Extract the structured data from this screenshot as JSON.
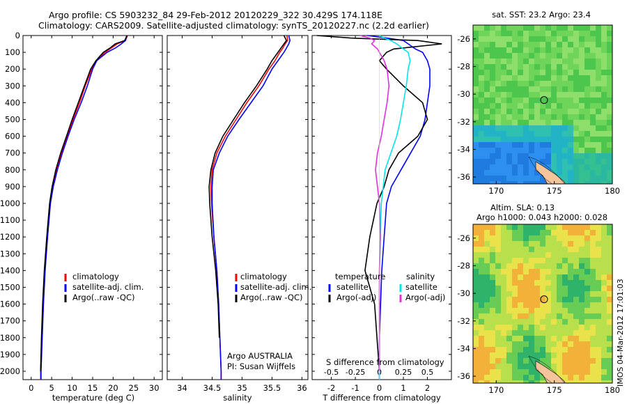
{
  "header": {
    "line1": "Argo profile: CS 5903232_84 29-Feb-2012 20120229_322 30.429S 174.118E",
    "line2": "Climatology: CARS2009. Satellite-adjusted climatology: synTS_20120227.nc (2.2d earlier)"
  },
  "colors": {
    "climatology": "#ff0000",
    "satellite": "#0000ff",
    "argo": "#000000",
    "salinity_satellite": "#00e5ee",
    "salinity_argo": "#e030e0"
  },
  "depth_ticks": [
    "0",
    "100",
    "200",
    "300",
    "400",
    "500",
    "600",
    "700",
    "800",
    "900",
    "1000",
    "1100",
    "1200",
    "1300",
    "1400",
    "1500",
    "1600",
    "1700",
    "1800",
    "1900",
    "2000"
  ],
  "chart_data": [
    {
      "type": "line",
      "id": "temperature",
      "xlabel": "temperature (deg C)",
      "xlim": [
        -2,
        32
      ],
      "ylim": [
        2050,
        0
      ],
      "xticks": [
        "0",
        "5",
        "10",
        "15",
        "20",
        "25",
        "30"
      ],
      "legend": [
        "climatology",
        "satellite-adj. clim.",
        "Argo(..raw -QC)"
      ],
      "depth": [
        0,
        30,
        50,
        75,
        100,
        150,
        200,
        300,
        400,
        500,
        600,
        700,
        800,
        900,
        1000,
        1200,
        1400,
        1600,
        1800,
        2000,
        2050
      ],
      "series": [
        {
          "name": "climatology",
          "values": [
            23.5,
            23.0,
            21.0,
            19.5,
            18.0,
            16.0,
            14.8,
            13.2,
            11.8,
            10.2,
            8.8,
            7.4,
            6.2,
            5.2,
            4.6,
            3.9,
            3.3,
            2.9,
            2.6,
            2.3,
            2.3
          ]
        },
        {
          "name": "satellite-adj. clim.",
          "values": [
            23.3,
            23.0,
            22.0,
            20.5,
            18.5,
            16.0,
            15.0,
            13.7,
            12.2,
            10.5,
            9.0,
            7.6,
            6.4,
            5.4,
            4.7,
            4.0,
            3.4,
            3.0,
            2.7,
            2.4,
            2.4
          ]
        },
        {
          "name": "Argo(..raw -QC)",
          "values": [
            23.4,
            22.8,
            20.5,
            19.2,
            17.6,
            15.8,
            14.5,
            13.0,
            11.5,
            10.0,
            8.6,
            7.2,
            6.0,
            5.1,
            4.5,
            3.8,
            3.2,
            2.8,
            2.5,
            2.3,
            null
          ]
        }
      ]
    },
    {
      "type": "line",
      "id": "salinity",
      "xlabel": "salinity",
      "xlim": [
        33.75,
        36.1
      ],
      "ylim": [
        2050,
        0
      ],
      "xticks": [
        "34",
        "34.5",
        "35",
        "35.5",
        "36"
      ],
      "legend": [
        "climatology",
        "satellite-adj. clim.",
        "Argo(..raw -QC)"
      ],
      "annotation": [
        "Argo AUSTRALIA",
        "PI: Susan Wijffels"
      ],
      "depth": [
        0,
        30,
        50,
        75,
        100,
        150,
        200,
        300,
        400,
        500,
        600,
        700,
        800,
        900,
        1000,
        1200,
        1400,
        1600,
        1800,
        2000,
        2050
      ],
      "series": [
        {
          "name": "climatology",
          "values": [
            35.75,
            35.76,
            35.72,
            35.68,
            35.63,
            35.55,
            35.45,
            35.28,
            35.08,
            34.9,
            34.72,
            34.58,
            34.5,
            34.48,
            34.49,
            34.53,
            34.58,
            34.61,
            34.63,
            34.65,
            34.65
          ]
        },
        {
          "name": "satellite-adj. clim.",
          "values": [
            35.78,
            35.8,
            35.78,
            35.74,
            35.7,
            35.6,
            35.5,
            35.35,
            35.15,
            34.95,
            34.76,
            34.62,
            34.52,
            34.5,
            34.5,
            34.53,
            34.58,
            34.61,
            34.63,
            34.65,
            34.65
          ]
        },
        {
          "name": "Argo(..raw -QC)",
          "values": [
            35.7,
            35.74,
            35.7,
            35.65,
            35.6,
            35.5,
            35.42,
            35.24,
            35.04,
            34.86,
            34.68,
            34.55,
            34.48,
            34.45,
            34.46,
            34.5,
            34.56,
            34.6,
            34.62,
            null,
            null
          ]
        }
      ]
    },
    {
      "type": "line",
      "id": "differences",
      "xlabel": "T difference from climatology",
      "xlabel_top": "S difference from climatology",
      "xlim": [
        -2.8,
        3.0
      ],
      "ylim": [
        2050,
        0
      ],
      "xticks": [
        "-2",
        "-1",
        "0",
        "1",
        "2"
      ],
      "xticks_top": [
        "-0.5",
        "-0.25",
        "0",
        "0.25",
        "0.5"
      ],
      "legend_temperature_title": "temperature",
      "legend_salinity_title": "salinity",
      "legend_temperature": [
        "satellite",
        "Argo(-adj)"
      ],
      "legend_salinity": [
        "satellite",
        "Argo(-adj)"
      ],
      "depth": [
        0,
        15,
        30,
        50,
        80,
        100,
        150,
        200,
        300,
        400,
        500,
        600,
        700,
        800,
        900,
        1000,
        1200,
        1400,
        1600,
        1800,
        2000,
        2050
      ],
      "series": [
        {
          "name": "T satellite",
          "values": [
            -0.5,
            0.3,
            1.0,
            1.2,
            1.5,
            1.8,
            2.0,
            2.1,
            2.1,
            2.0,
            1.9,
            1.7,
            1.3,
            0.9,
            0.5,
            0.3,
            0.2,
            0.1,
            0.05,
            0.0,
            0.0,
            0.0
          ]
        },
        {
          "name": "T Argo(-adj)",
          "values": [
            -2.6,
            -1.2,
            1.6,
            2.6,
            0.6,
            0.3,
            0.0,
            0.3,
            1.0,
            1.8,
            2.0,
            1.6,
            0.8,
            0.4,
            0.2,
            -0.1,
            -0.4,
            -0.6,
            -0.2,
            -0.1,
            0.0,
            null
          ]
        },
        {
          "name": "S satellite",
          "values": [
            0.0,
            0.05,
            0.12,
            0.18,
            0.25,
            0.3,
            0.32,
            0.3,
            0.28,
            0.25,
            0.22,
            0.18,
            0.12,
            0.06,
            0.04,
            0.02,
            0.01,
            0.0,
            0.0,
            0.0,
            0.0,
            0.0
          ]
        },
        {
          "name": "S Argo(-adj)",
          "values": [
            -0.2,
            -0.1,
            -0.05,
            -0.08,
            -0.02,
            0.0,
            0.05,
            0.08,
            0.1,
            0.08,
            0.05,
            0.02,
            -0.02,
            -0.04,
            -0.02,
            0.0,
            0.01,
            0.0,
            0.0,
            0.0,
            0.0,
            null
          ]
        }
      ]
    }
  ],
  "maps": [
    {
      "id": "sst",
      "title": "sat. SST: 23.2 Argo: 23.4",
      "xticks": [
        "170",
        "175",
        "180"
      ],
      "yticks": [
        "-26",
        "-28",
        "-30",
        "-32",
        "-34",
        "-36"
      ]
    },
    {
      "id": "sla",
      "title_line1": "Altim. SLA: 0.13",
      "title_line2": "Argo h1000: 0.043 h2000: 0.028",
      "xticks": [
        "170",
        "175",
        "180"
      ],
      "yticks": [
        "-26",
        "-28",
        "-30",
        "-32",
        "-34",
        "-36"
      ]
    }
  ],
  "stamp": "IMOS 04-Mar-2012 17:01:03"
}
